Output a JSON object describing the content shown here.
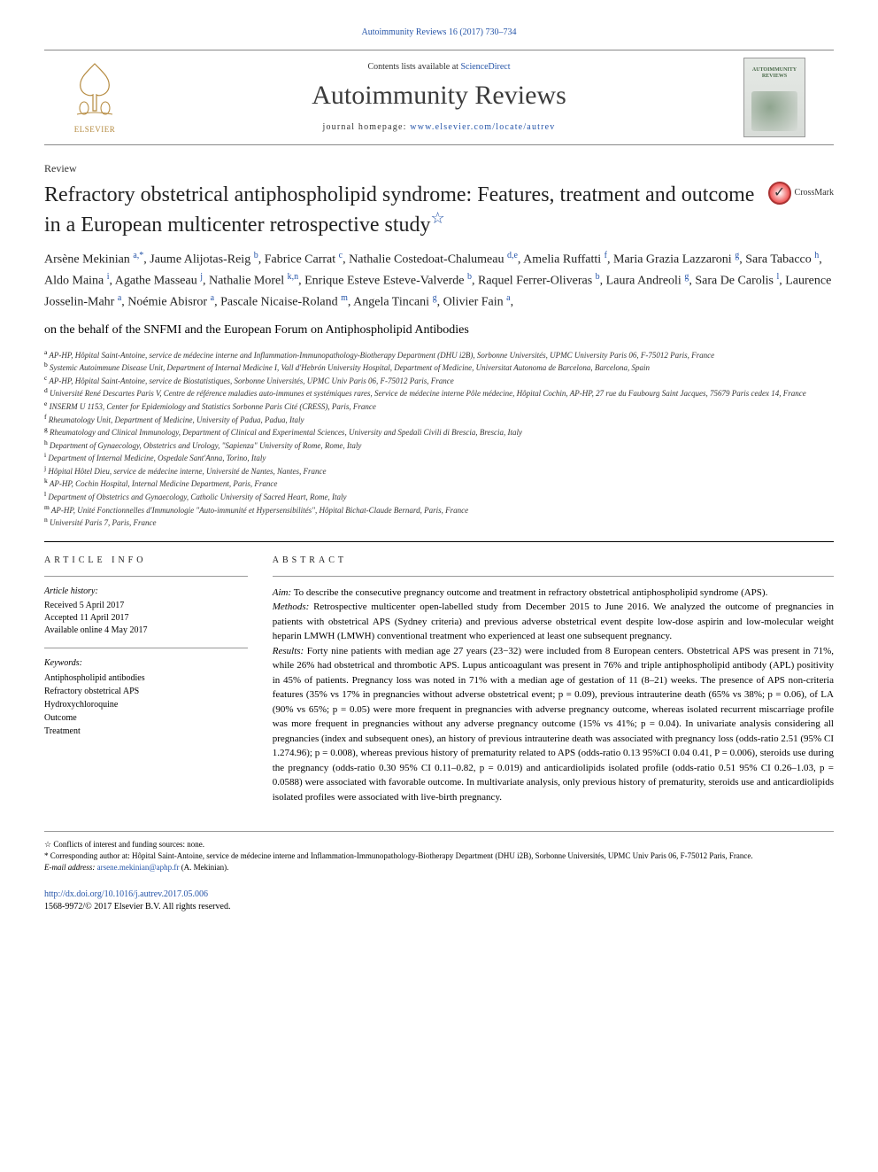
{
  "citation_line": "Autoimmunity Reviews 16 (2017) 730–734",
  "header": {
    "contents_text": "Contents lists available at",
    "contents_link": "ScienceDirect",
    "journal_name": "Autoimmunity Reviews",
    "homepage_label": "journal homepage:",
    "homepage_url": "www.elsevier.com/locate/autrev",
    "publisher_name": "ELSEVIER",
    "cover_label": "AUTOIMMUNITY REVIEWS"
  },
  "review_label": "Review",
  "article_title": "Refractory obstetrical antiphospholipid syndrome: Features, treatment and outcome in a European multicenter retrospective study",
  "crossmark_label": "CrossMark",
  "authors_html": "Arsène Mekinian <sup>a,*</sup>, Jaume Alijotas-Reig <sup>b</sup>, Fabrice Carrat <sup>c</sup>, Nathalie Costedoat-Chalumeau <sup>d,e</sup>, Amelia Ruffatti <sup>f</sup>, Maria Grazia Lazzaroni <sup>g</sup>, Sara Tabacco <sup>h</sup>, Aldo Maina <sup>i</sup>, Agathe Masseau <sup>j</sup>, Nathalie Morel <sup>k,n</sup>, Enrique Esteve Esteve-Valverde <sup>b</sup>, Raquel Ferrer-Oliveras <sup>b</sup>, Laura Andreoli <sup>g</sup>, Sara De Carolis <sup>l</sup>, Laurence Josselin-Mahr <sup>a</sup>, Noémie Abisror <sup>a</sup>, Pascale Nicaise-Roland <sup>m</sup>, Angela Tincani <sup>g</sup>, Olivier Fain <sup>a</sup>,",
  "authors_tail": "on the behalf of the SNFMI and the European Forum on Antiphospholipid Antibodies",
  "affiliations": [
    {
      "k": "a",
      "t": "AP-HP, Hôpital Saint-Antoine, service de médecine interne and Inflammation-Immunopathology-Biotherapy Department (DHU i2B), Sorbonne Universités, UPMC University Paris 06, F-75012 Paris, France"
    },
    {
      "k": "b",
      "t": "Systemic Autoimmune Disease Unit, Department of Internal Medicine I, Vall d'Hebrón University Hospital, Department of Medicine, Universitat Autonoma de Barcelona, Barcelona, Spain"
    },
    {
      "k": "c",
      "t": "AP-HP, Hôpital Saint-Antoine, service de Biostatistiques, Sorbonne Universités, UPMC Univ Paris 06, F-75012 Paris, France"
    },
    {
      "k": "d",
      "t": "Université René Descartes Paris V, Centre de référence maladies auto-immunes et systémiques rares, Service de médecine interne Pôle médecine, Hôpital Cochin, AP-HP, 27 rue du Faubourg Saint Jacques, 75679 Paris cedex 14, France"
    },
    {
      "k": "e",
      "t": "INSERM U 1153, Center for Epidemiology and Statistics Sorbonne Paris Cité (CRESS), Paris, France"
    },
    {
      "k": "f",
      "t": "Rheumatology Unit, Department of Medicine, University of Padua, Padua, Italy"
    },
    {
      "k": "g",
      "t": "Rheumatology and Clinical Immunology, Department of Clinical and Experimental Sciences, University and Spedali Civili di Brescia, Brescia, Italy"
    },
    {
      "k": "h",
      "t": "Department of Gynaecology, Obstetrics and Urology, \"Sapienza\" University of Rome, Rome, Italy"
    },
    {
      "k": "i",
      "t": "Department of Internal Medicine, Ospedale Sant'Anna, Torino, Italy"
    },
    {
      "k": "j",
      "t": "Hôpital Hôtel Dieu, service de médecine interne, Université de Nantes, Nantes, France"
    },
    {
      "k": "k",
      "t": "AP-HP, Cochin Hospital, Internal Medicine Department, Paris, France"
    },
    {
      "k": "l",
      "t": "Department of Obstetrics and Gynaecology, Catholic University of Sacred Heart, Rome, Italy"
    },
    {
      "k": "m",
      "t": "AP-HP, Unité Fonctionnelles d'Immunologie \"Auto-immunité et Hypersensibilités\", Hôpital Bichat-Claude Bernard, Paris, France"
    },
    {
      "k": "n",
      "t": "Université Paris 7, Paris, France"
    }
  ],
  "article_info": {
    "heading": "ARTICLE INFO",
    "history_label": "Article history:",
    "history_lines": "Received 5 April 2017\nAccepted 11 April 2017\nAvailable online 4 May 2017",
    "keywords_label": "Keywords:",
    "keywords": [
      "Antiphospholipid antibodies",
      "Refractory obstetrical APS",
      "Hydroxychloroquine",
      "Outcome",
      "Treatment"
    ]
  },
  "abstract": {
    "heading": "ABSTRACT",
    "aim_label": "Aim:",
    "aim": "To describe the consecutive pregnancy outcome and treatment in refractory obstetrical antiphospholipid syndrome (APS).",
    "methods_label": "Methods:",
    "methods": "Retrospective multicenter open-labelled study from December 2015 to June 2016. We analyzed the outcome of pregnancies in patients with obstetrical APS (Sydney criteria) and previous adverse obstetrical event despite low-dose aspirin and low-molecular weight heparin LMWH (LMWH) conventional treatment who experienced at least one subsequent pregnancy.",
    "results_label": "Results:",
    "results": "Forty nine patients with median age 27 years (23−32) were included from 8 European centers. Obstetrical APS was present in 71%, while 26% had obstetrical and thrombotic APS. Lupus anticoagulant was present in 76% and triple antiphospholipid antibody (APL) positivity in 45% of patients. Pregnancy loss was noted in 71% with a median age of gestation of 11 (8–21) weeks. The presence of APS non-criteria features (35% vs 17% in pregnancies without adverse obstetrical event; p = 0.09), previous intrauterine death (65% vs 38%; p = 0.06), of LA (90% vs 65%; p = 0.05) were more frequent in pregnancies with adverse pregnancy outcome, whereas isolated recurrent miscarriage profile was more frequent in pregnancies without any adverse pregnancy outcome (15% vs 41%; p = 0.04). In univariate analysis considering all pregnancies (index and subsequent ones), an history of previous intrauterine death was associated with pregnancy loss (odds-ratio 2.51 (95% CI 1.274.96); p = 0.008), whereas previous history of prematurity related to APS (odds-ratio 0.13 95%CI 0.04 0.41, P = 0.006), steroids use during the pregnancy (odds-ratio 0.30 95% CI 0.11–0.82, p = 0.019) and anticardiolipids isolated profile (odds-ratio 0.51 95% CI 0.26–1.03, p = 0.0588) were associated with favorable outcome. In multivariate analysis, only previous history of prematurity, steroids use and anticardiolipids isolated profiles were associated with live-birth pregnancy."
  },
  "footer": {
    "conflicts": "☆  Conflicts of interest and funding sources: none.",
    "corresponding": "*  Corresponding author at: Hôpital Saint-Antoine, service de médecine interne and Inflammation-Immunopathology-Biotherapy Department (DHU i2B), Sorbonne Universités, UPMC Univ Paris 06, F-75012 Paris, France.",
    "email_label": "E-mail address:",
    "email": "arsene.mekinian@aphp.fr",
    "email_author": "(A. Mekinian)."
  },
  "doi": {
    "url": "http://dx.doi.org/10.1016/j.autrev.2017.05.006",
    "copyright": "1568-9972/© 2017 Elsevier B.V. All rights reserved."
  },
  "colors": {
    "link": "#2554a8",
    "text": "#000000",
    "rule": "#888888"
  }
}
